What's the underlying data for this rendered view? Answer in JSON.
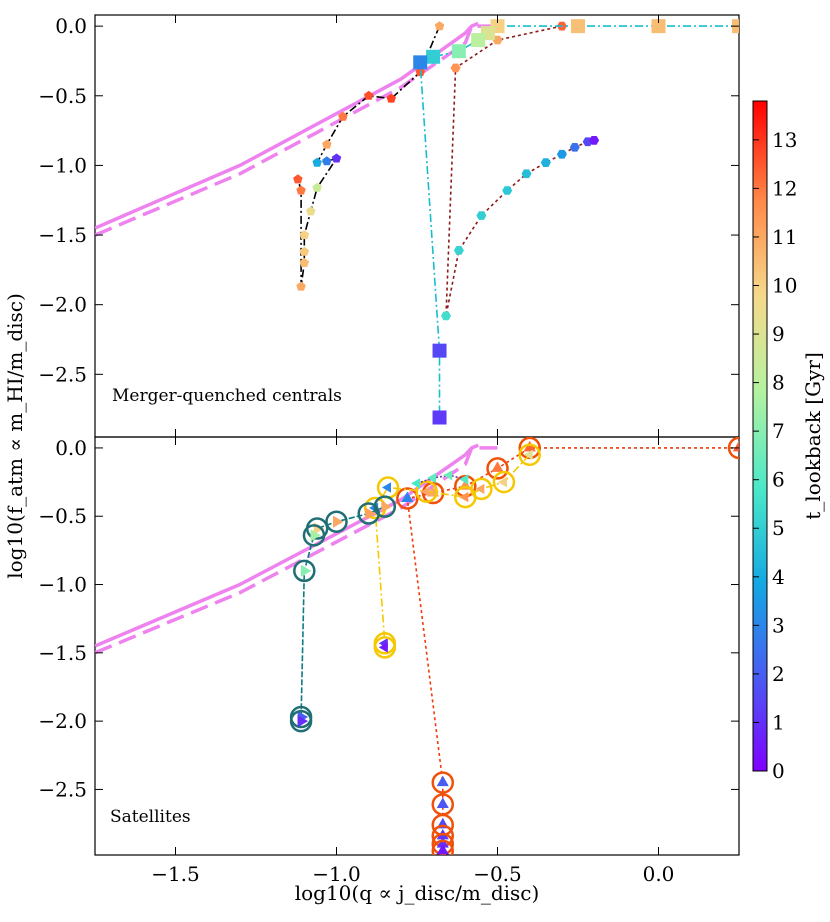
{
  "chart_data": {
    "type": "line",
    "xlabel": "log10(q ∝ j_disc/m_disc)",
    "ylabel": "log10(f_atm ∝ m_HI/m_disc)",
    "xlim": [
      -1.75,
      0.25
    ],
    "x_ticks": [
      -1.5,
      -1.0,
      -0.5,
      0.0
    ],
    "x_tick_labels": [
      "−1.5",
      "−1.0",
      "−0.5",
      "0.0"
    ],
    "colorbar": {
      "label": "t_lookback [Gyr]",
      "range": [
        0,
        13.8
      ],
      "ticks": [
        0,
        1,
        2,
        3,
        4,
        5,
        6,
        7,
        8,
        9,
        10,
        11,
        12,
        13
      ],
      "tick_labels": [
        "0",
        "1",
        "2",
        "3",
        "4",
        "5",
        "6",
        "7",
        "8",
        "9",
        "10",
        "11",
        "12",
        "13"
      ],
      "colormap": "rainbow"
    },
    "reference_curves": {
      "color": "#ee82ee",
      "solid": {
        "x": [
          -1.75,
          -1.3,
          -0.8,
          -0.6,
          -0.58,
          -0.56
        ],
        "y": [
          -1.45,
          -1.0,
          -0.38,
          -0.05,
          0.0,
          0.02
        ]
      },
      "dashed": {
        "x": [
          -1.75,
          -1.3,
          -0.8,
          -0.6,
          -0.58,
          -0.5
        ],
        "y": [
          -1.5,
          -1.06,
          -0.44,
          -0.12,
          0.0,
          0.0
        ]
      }
    },
    "panels": [
      {
        "label": "Merger-quenched centrals",
        "ylim": [
          -2.95,
          0.08
        ],
        "y_ticks": [
          0.0,
          -0.5,
          -1.0,
          -1.5,
          -2.0,
          -2.5
        ],
        "y_tick_labels": [
          "0.0",
          "−0.5",
          "−1.0",
          "−1.5",
          "−2.0",
          "−2.5"
        ],
        "tracks": [
          {
            "name": "central-1",
            "line_color": "#000000",
            "dash": "8,3,2,3",
            "marker": "pentagon",
            "circled": false,
            "points": [
              {
                "x": -0.68,
                "y": 0.0,
                "t": 11
              },
              {
                "x": -0.74,
                "y": -0.33,
                "t": 12.5
              },
              {
                "x": -0.83,
                "y": -0.52,
                "t": 12.8
              },
              {
                "x": -0.9,
                "y": -0.5,
                "t": 12.6
              },
              {
                "x": -0.98,
                "y": -0.65,
                "t": 12
              },
              {
                "x": -1.03,
                "y": -0.85,
                "t": 11
              },
              {
                "x": -1.06,
                "y": -0.98,
                "t": 4
              },
              {
                "x": -1.03,
                "y": -0.97,
                "t": 2.8
              },
              {
                "x": -1.0,
                "y": -0.95,
                "t": 1
              },
              {
                "x": -1.06,
                "y": -1.16,
                "t": 8.5
              },
              {
                "x": -1.08,
                "y": -1.33,
                "t": 9.5
              },
              {
                "x": -1.1,
                "y": -1.5,
                "t": 10
              },
              {
                "x": -1.1,
                "y": -1.62,
                "t": 10.2
              },
              {
                "x": -1.1,
                "y": -1.7,
                "t": 10.5
              },
              {
                "x": -1.11,
                "y": -1.87,
                "t": 11
              },
              {
                "x": -1.11,
                "y": -1.18,
                "t": 12
              },
              {
                "x": -1.12,
                "y": -1.1,
                "t": 12.5
              }
            ]
          },
          {
            "name": "central-2",
            "line_color": "#8b1a1a",
            "dash": "3,3",
            "marker": "hexagon",
            "circled": false,
            "points": [
              {
                "x": -0.3,
                "y": 0.0,
                "t": 12.3
              },
              {
                "x": -0.5,
                "y": -0.1,
                "t": 11
              },
              {
                "x": -0.63,
                "y": -0.3,
                "t": 11.5
              },
              {
                "x": -0.66,
                "y": -2.08,
                "t": 5.5
              },
              {
                "x": -0.62,
                "y": -1.61,
                "t": 5.2
              },
              {
                "x": -0.55,
                "y": -1.36,
                "t": 5.0
              },
              {
                "x": -0.47,
                "y": -1.18,
                "t": 4.8
              },
              {
                "x": -0.41,
                "y": -1.06,
                "t": 4.5
              },
              {
                "x": -0.35,
                "y": -0.98,
                "t": 4.2
              },
              {
                "x": -0.3,
                "y": -0.92,
                "t": 3.5
              },
              {
                "x": -0.26,
                "y": -0.87,
                "t": 2.5
              },
              {
                "x": -0.22,
                "y": -0.83,
                "t": 1.5
              },
              {
                "x": -0.2,
                "y": -0.82,
                "t": 0.5
              }
            ]
          },
          {
            "name": "central-3",
            "line_color": "#17becf",
            "dash": "8,3,2,3",
            "marker": "square",
            "circled": false,
            "points": [
              {
                "x": 0.25,
                "y": 0.0,
                "t": 10.5
              },
              {
                "x": 0.0,
                "y": 0.0,
                "t": 10.5
              },
              {
                "x": -0.25,
                "y": 0.0,
                "t": 10.4
              },
              {
                "x": -0.5,
                "y": 0.0,
                "t": 10
              },
              {
                "x": -0.53,
                "y": -0.05,
                "t": 9
              },
              {
                "x": -0.56,
                "y": -0.1,
                "t": 8
              },
              {
                "x": -0.62,
                "y": -0.18,
                "t": 7
              },
              {
                "x": -0.7,
                "y": -0.22,
                "t": 5
              },
              {
                "x": -0.74,
                "y": -0.26,
                "t": 3
              },
              {
                "x": -0.68,
                "y": -2.33,
                "t": 1.5
              },
              {
                "x": -0.68,
                "y": -2.81,
                "t": 1.2
              }
            ]
          }
        ]
      },
      {
        "label": "Satellites",
        "ylim": [
          -2.98,
          0.08
        ],
        "y_ticks": [
          0.0,
          -0.5,
          -1.0,
          -1.5,
          -2.0,
          -2.5
        ],
        "y_tick_labels": [
          "0.0",
          "−0.5",
          "−1.0",
          "−1.5",
          "−2.0",
          "−2.5"
        ],
        "tracks": [
          {
            "name": "satellite-1",
            "line_color": "#f03c0c",
            "dash": "3,3",
            "marker": "triangle-up",
            "circled": true,
            "ring_color": "#f0500a",
            "points": [
              {
                "x": 0.25,
                "y": 0.0,
                "t": 12.5
              },
              {
                "x": -0.4,
                "y": 0.0,
                "t": 12.3
              },
              {
                "x": -0.5,
                "y": -0.15,
                "t": 12
              },
              {
                "x": -0.6,
                "y": -0.28,
                "t": 11.5
              },
              {
                "x": -0.7,
                "y": -0.33,
                "t": 11
              },
              {
                "x": -0.78,
                "y": -0.37,
                "t": 3
              },
              {
                "x": -0.67,
                "y": -2.45,
                "t": 2
              },
              {
                "x": -0.67,
                "y": -2.61,
                "t": 1.8
              },
              {
                "x": -0.67,
                "y": -2.76,
                "t": 1.5
              },
              {
                "x": -0.67,
                "y": -2.84,
                "t": 1.2
              },
              {
                "x": -0.67,
                "y": -2.9,
                "t": 1
              },
              {
                "x": -0.67,
                "y": -2.95,
                "t": 0.5
              }
            ]
          },
          {
            "name": "satellite-2",
            "line_color": "#f5c800",
            "dash": "8,3,2,3",
            "marker": "triangle-left",
            "circled": true,
            "ring_color": "#f5c800",
            "points": [
              {
                "x": -0.4,
                "y": -0.05,
                "t": 9
              },
              {
                "x": -0.48,
                "y": -0.25,
                "t": 10
              },
              {
                "x": -0.55,
                "y": -0.3,
                "t": 11
              },
              {
                "x": -0.6,
                "y": -0.36,
                "t": 11.5
              },
              {
                "x": -0.72,
                "y": -0.32,
                "t": 11
              },
              {
                "x": -0.84,
                "y": -0.29,
                "t": 3
              },
              {
                "x": -0.88,
                "y": -0.44,
                "t": 3
              },
              {
                "x": -0.85,
                "y": -1.43,
                "t": 1
              },
              {
                "x": -0.85,
                "y": -1.46,
                "t": 0.5
              }
            ]
          },
          {
            "name": "satellite-3",
            "line_color": "#0e7c80",
            "dash": "6,2",
            "marker": "triangle-right",
            "circled": true,
            "ring_color": "#1f6f74",
            "points": [
              {
                "x": -0.85,
                "y": -0.43,
                "t": 11
              },
              {
                "x": -0.9,
                "y": -0.48,
                "t": 11.2
              },
              {
                "x": -1.0,
                "y": -0.54,
                "t": 11
              },
              {
                "x": -1.06,
                "y": -0.59,
                "t": 10
              },
              {
                "x": -1.07,
                "y": -0.64,
                "t": 7.5
              },
              {
                "x": -1.1,
                "y": -0.9,
                "t": 7
              },
              {
                "x": -1.11,
                "y": -1.97,
                "t": 2
              },
              {
                "x": -1.11,
                "y": -2.0,
                "t": 1
              }
            ]
          },
          {
            "name": "satellite-4",
            "line_color": "#6a3d9a",
            "dash": "2,2",
            "marker": "triangle-left",
            "circled": false,
            "points": [
              {
                "x": -0.6,
                "y": -0.23,
                "t": 6
              },
              {
                "x": -0.65,
                "y": -0.2,
                "t": 6.5
              },
              {
                "x": -0.7,
                "y": -0.22,
                "t": 6.2
              },
              {
                "x": -0.75,
                "y": -0.26,
                "t": 5.8
              }
            ]
          }
        ]
      }
    ]
  }
}
